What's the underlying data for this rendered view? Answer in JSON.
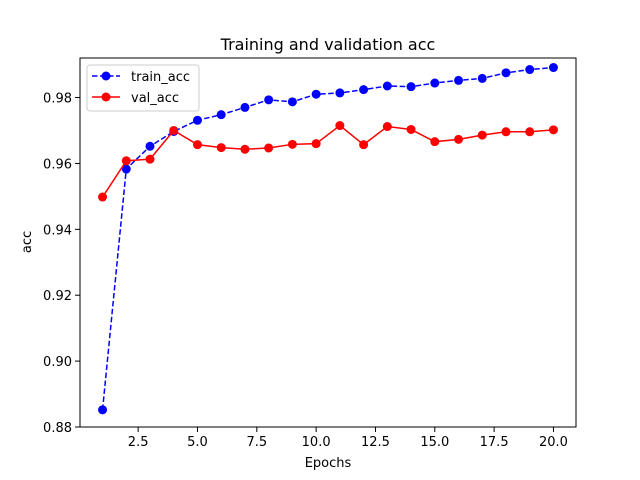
{
  "chart_data": {
    "type": "line",
    "title": "Training and validation acc",
    "xlabel": "Epochs",
    "ylabel": "acc",
    "xlim": [
      0.05,
      20.95
    ],
    "ylim": [
      0.88,
      0.992
    ],
    "xticks": [
      2.5,
      5.0,
      7.5,
      10.0,
      12.5,
      15.0,
      17.5,
      20.0
    ],
    "xtick_labels": [
      "2.5",
      "5.0",
      "7.5",
      "10.0",
      "12.5",
      "15.0",
      "17.5",
      "20.0"
    ],
    "yticks": [
      0.88,
      0.9,
      0.92,
      0.94,
      0.96,
      0.98
    ],
    "ytick_labels": [
      "0.88",
      "0.90",
      "0.92",
      "0.94",
      "0.96",
      "0.98"
    ],
    "grid": false,
    "legend_position": "top-left",
    "x": [
      1,
      2,
      3,
      4,
      5,
      6,
      7,
      8,
      9,
      10,
      11,
      12,
      13,
      14,
      15,
      16,
      17,
      18,
      19,
      20
    ],
    "series": [
      {
        "name": "train_acc",
        "color": "#0000ff",
        "linestyle": "dashed",
        "marker": "circle",
        "values": [
          0.8852,
          0.9583,
          0.9652,
          0.9697,
          0.9731,
          0.9748,
          0.977,
          0.9793,
          0.9787,
          0.981,
          0.9814,
          0.9824,
          0.9835,
          0.9833,
          0.9844,
          0.9852,
          0.9858,
          0.9875,
          0.9885,
          0.9891
        ]
      },
      {
        "name": "val_acc",
        "color": "#ff0000",
        "linestyle": "solid",
        "marker": "circle",
        "values": [
          0.9498,
          0.9608,
          0.9613,
          0.97,
          0.9657,
          0.9648,
          0.9643,
          0.9647,
          0.9658,
          0.966,
          0.9715,
          0.9657,
          0.9712,
          0.9703,
          0.9666,
          0.9673,
          0.9686,
          0.9696,
          0.9696,
          0.9702
        ]
      }
    ]
  }
}
